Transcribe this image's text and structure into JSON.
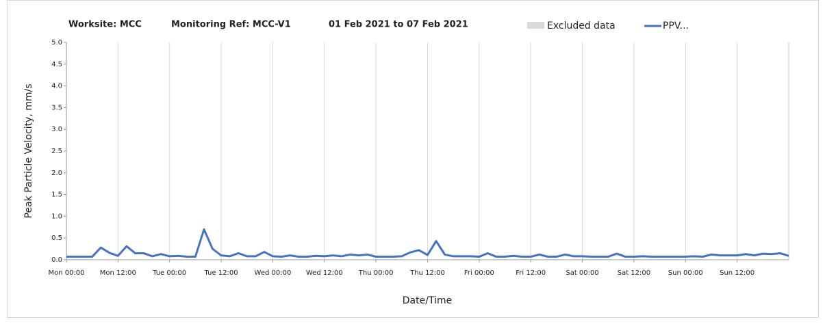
{
  "chart_data": {
    "type": "line",
    "title": "Worksite: MCC",
    "subtitle": "Monitoring Ref: MCC-V1",
    "date_range": "01 Feb 2021 to 07 Feb 2021",
    "x_label": "Date/Time",
    "y_label": "Peak Particle Velocity, mm/s",
    "excluded_legend": {
      "name": "Excluded data",
      "color": "#d9d9d9"
    },
    "x": [
      0,
      2,
      4,
      6,
      8,
      10,
      12,
      14,
      16,
      18,
      20,
      22,
      24,
      26,
      28,
      30,
      32,
      34,
      36,
      38,
      40,
      42,
      44,
      46,
      48,
      50,
      52,
      54,
      56,
      58,
      60,
      62,
      64,
      66,
      68,
      70,
      72,
      74,
      76,
      78,
      80,
      82,
      84,
      86,
      88,
      90,
      92,
      94,
      96,
      98,
      100,
      102,
      104,
      106,
      108,
      110,
      112,
      114,
      116,
      118,
      120,
      122,
      124,
      126,
      128,
      130,
      132,
      134,
      136,
      138,
      140,
      142,
      144,
      146,
      148,
      150,
      152,
      154,
      156,
      158,
      160,
      162,
      164,
      166,
      168
    ],
    "series": [
      {
        "name": "PPV...",
        "color": "#4472c4",
        "values": [
          0.07,
          0.07,
          0.07,
          0.07,
          0.28,
          0.16,
          0.09,
          0.31,
          0.15,
          0.15,
          0.08,
          0.13,
          0.08,
          0.09,
          0.07,
          0.07,
          0.7,
          0.25,
          0.1,
          0.08,
          0.15,
          0.08,
          0.08,
          0.18,
          0.08,
          0.07,
          0.1,
          0.07,
          0.07,
          0.09,
          0.08,
          0.1,
          0.08,
          0.12,
          0.1,
          0.12,
          0.07,
          0.07,
          0.07,
          0.08,
          0.17,
          0.22,
          0.11,
          0.43,
          0.12,
          0.08,
          0.08,
          0.08,
          0.07,
          0.15,
          0.07,
          0.07,
          0.09,
          0.07,
          0.07,
          0.12,
          0.07,
          0.07,
          0.12,
          0.08,
          0.08,
          0.07,
          0.07,
          0.07,
          0.14,
          0.07,
          0.07,
          0.08,
          0.07,
          0.07,
          0.07,
          0.07,
          0.07,
          0.08,
          0.07,
          0.12,
          0.1,
          0.1,
          0.1,
          0.13,
          0.1,
          0.14,
          0.13,
          0.15,
          0.09
        ]
      }
    ],
    "xlim": [
      0,
      168
    ],
    "xticks": [
      {
        "value": 0,
        "label": "Mon 00:00"
      },
      {
        "value": 12,
        "label": "Mon 12:00"
      },
      {
        "value": 24,
        "label": "Tue 00:00"
      },
      {
        "value": 36,
        "label": "Tue 12:00"
      },
      {
        "value": 48,
        "label": "Wed 00:00"
      },
      {
        "value": 60,
        "label": "Wed 12:00"
      },
      {
        "value": 72,
        "label": "Thu 00:00"
      },
      {
        "value": 84,
        "label": "Thu 12:00"
      },
      {
        "value": 96,
        "label": "Fri 00:00"
      },
      {
        "value": 108,
        "label": "Fri 12:00"
      },
      {
        "value": 120,
        "label": "Sat 00:00"
      },
      {
        "value": 132,
        "label": "Sat 12:00"
      },
      {
        "value": 144,
        "label": "Sun 00:00"
      },
      {
        "value": 156,
        "label": "Sun 12:00"
      }
    ],
    "ylim": [
      0,
      5
    ],
    "yticks": [
      {
        "value": 0,
        "label": "0.0"
      },
      0.5,
      {
        "value": 1,
        "label": "1.0"
      },
      1.5,
      {
        "value": 2,
        "label": "2.0"
      },
      2.5,
      {
        "value": 3,
        "label": "3.0"
      },
      3.5,
      {
        "value": 4,
        "label": "4.0"
      },
      4.5,
      {
        "value": 5,
        "label": "5.0"
      }
    ],
    "x_grid": true
  }
}
